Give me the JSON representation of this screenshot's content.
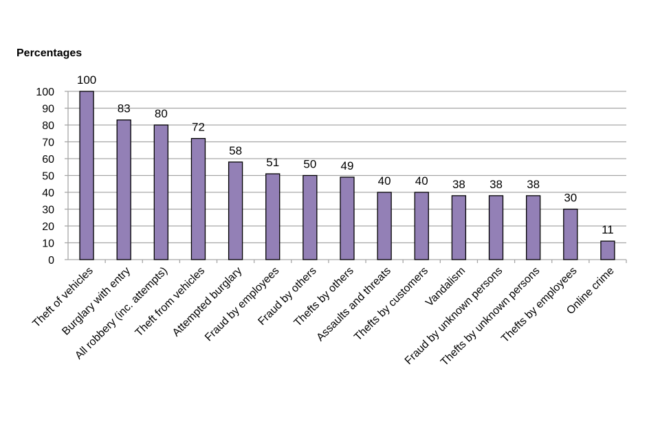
{
  "chart_data": {
    "type": "bar",
    "title": "",
    "y_unit_label": "Percentages",
    "xlabel": "",
    "ylabel": "",
    "ylim": [
      0,
      100
    ],
    "yticks": [
      0,
      10,
      20,
      30,
      40,
      50,
      60,
      70,
      80,
      90,
      100
    ],
    "grid": true,
    "bar_color": "#9380b6",
    "bar_stroke": "#000000",
    "grid_color": "#a6a6a6",
    "categories": [
      "Theft of vehicles",
      "Burglary with entry",
      "All robbery (inc. attempts)",
      "Theft from vehicles",
      "Attempted burglary",
      "Fraud by employees",
      "Fraud by others",
      "Thefts by others",
      "Assaults and threats",
      "Thefts by customers",
      "Vandalism",
      "Fraud by unknown persons",
      "Thefts by unknown persons",
      "Thefts by employees",
      "Online crime"
    ],
    "values": [
      100,
      83,
      80,
      72,
      58,
      51,
      50,
      49,
      40,
      40,
      38,
      38,
      38,
      30,
      11
    ]
  }
}
